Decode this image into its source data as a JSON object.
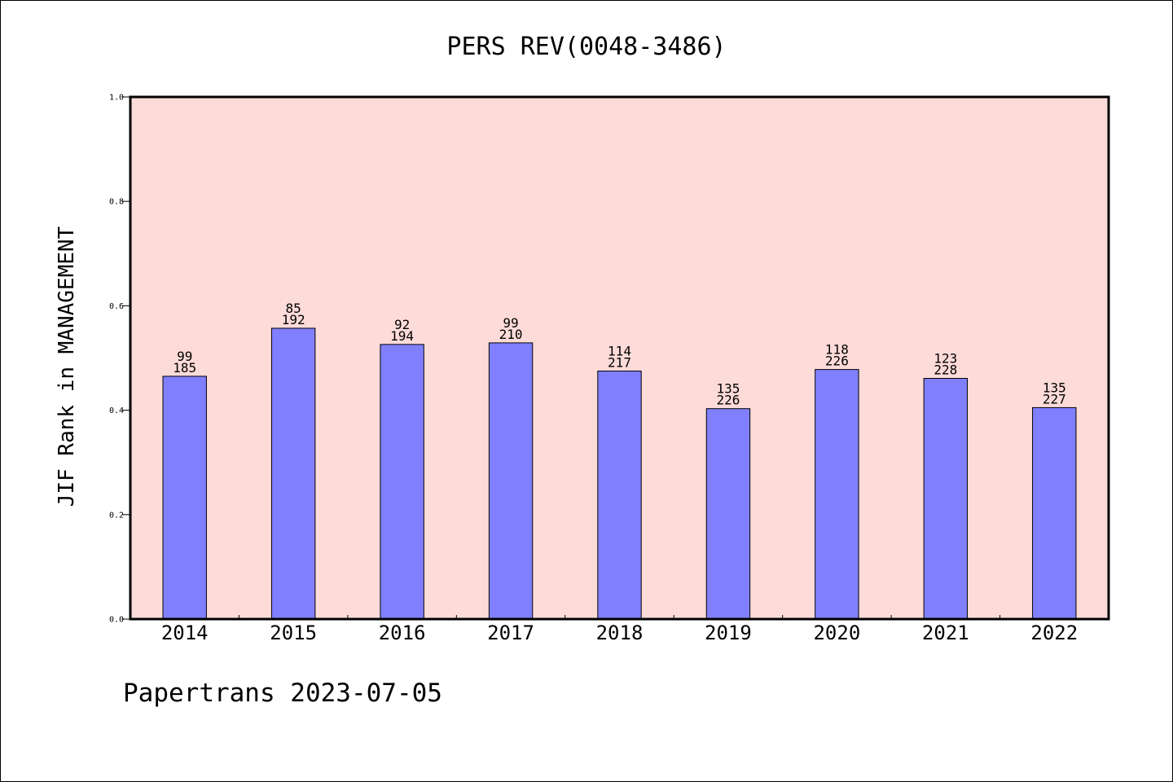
{
  "chart_data": {
    "type": "bar",
    "title": "PERS REV(0048-3486)",
    "xlabel": "",
    "ylabel": "JIF Rank in MANAGEMENT",
    "ylim": [
      0,
      1.0
    ],
    "yticks": [
      "0.0",
      "0.2",
      "0.4",
      "0.6",
      "0.8",
      "1.0"
    ],
    "categories": [
      "2014",
      "2015",
      "2016",
      "2017",
      "2018",
      "2019",
      "2020",
      "2021",
      "2022"
    ],
    "values": [
      0.465,
      0.557,
      0.526,
      0.529,
      0.475,
      0.403,
      0.478,
      0.461,
      0.405
    ],
    "bar_labels": [
      [
        "99",
        "185"
      ],
      [
        "85",
        "192"
      ],
      [
        "92",
        "194"
      ],
      [
        "99",
        "210"
      ],
      [
        "114",
        "217"
      ],
      [
        "135",
        "226"
      ],
      [
        "118",
        "226"
      ],
      [
        "123",
        "228"
      ],
      [
        "135",
        "227"
      ]
    ],
    "grid": false,
    "colors": {
      "bar": "#8080ff",
      "plot_background": "#fddbd8",
      "axis": "#000000"
    }
  },
  "footer": "Papertrans 2023-07-05"
}
